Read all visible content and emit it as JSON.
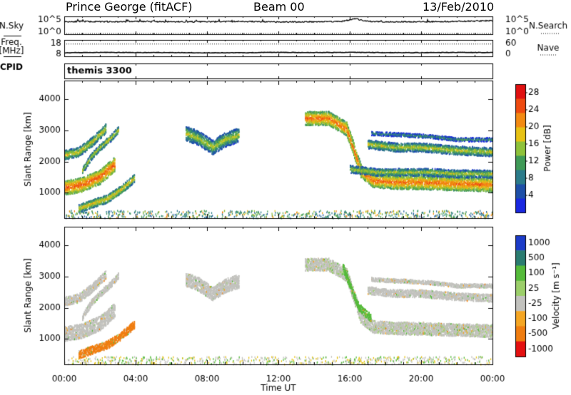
{
  "header": {
    "title": "Prince George (fitACF)",
    "beam": "Beam 00",
    "date": "13/Feb/2010"
  },
  "chart_data": [
    {
      "type": "line",
      "panel": "noise",
      "left_label": "N.Sky",
      "right_label": "N.Search",
      "left_ticks": [
        "10^5",
        "10^0"
      ],
      "right_ticks": [
        "10^5",
        "10^0"
      ],
      "ylim_log10": [
        0,
        5
      ],
      "series": [
        {
          "style": "solid",
          "x": [
            0,
            1,
            2,
            3,
            4,
            6,
            8,
            10,
            12,
            14,
            15.5,
            16.0,
            16.3,
            16.6,
            17.0,
            18,
            20,
            22,
            23,
            24
          ],
          "y_log10": [
            3.5,
            3.6,
            3.5,
            3.5,
            3.6,
            3.5,
            3.5,
            3.6,
            3.4,
            3.5,
            3.6,
            4.0,
            4.4,
            4.0,
            3.6,
            3.5,
            3.5,
            3.6,
            3.7,
            3.8
          ]
        },
        {
          "style": "dotted",
          "x": [
            0,
            24
          ],
          "y_log10": [
            0,
            0
          ]
        }
      ]
    },
    {
      "type": "line",
      "panel": "frequency",
      "left_label": "Freq.",
      "left_unit": "[MHz]",
      "left_ticks": [
        "18",
        "8"
      ],
      "right_label": "Nave",
      "right_ticks": [
        "60",
        "0"
      ],
      "freq_ylim": [
        8,
        18
      ],
      "nave_ylim": [
        0,
        60
      ],
      "series": [
        {
          "name_axis": "freq",
          "style": "solid",
          "x": [
            0,
            2,
            4,
            6,
            8,
            10,
            12,
            14,
            16,
            18,
            20,
            22,
            24
          ],
          "y": [
            10.2,
            10.4,
            10.3,
            10.3,
            10.1,
            10.2,
            10.4,
            10.3,
            10.4,
            10.3,
            10.2,
            10.4,
            10.3
          ]
        },
        {
          "name_axis": "nave",
          "style": "dotted",
          "x": [
            0,
            24
          ],
          "y": [
            45,
            45
          ]
        }
      ]
    },
    {
      "type": "text",
      "panel": "cpid",
      "left_label": "CPID",
      "value": "themis 3300"
    },
    {
      "type": "heatmap",
      "panel": "power",
      "ylabel": "Slant Range [km]",
      "yticks": [
        1000,
        2000,
        3000,
        4000
      ],
      "ylim": [
        180,
        4600
      ],
      "xlim": [
        0,
        24
      ],
      "colorbar": {
        "label": "Power [dB]",
        "ticks": [
          4,
          8,
          12,
          16,
          20,
          24,
          28
        ],
        "range": [
          0,
          30
        ]
      },
      "bands": [
        {
          "x": [
            0.0,
            1.0,
            2.0,
            2.8
          ],
          "y": [
            1150,
            1250,
            1500,
            1900
          ],
          "w": 230,
          "p": 26
        },
        {
          "x": [
            0.0,
            0.8,
            1.6,
            2.3
          ],
          "y": [
            2200,
            2300,
            2650,
            3050
          ],
          "w": 150,
          "p": 19
        },
        {
          "x": [
            1.0,
            1.5,
            2.0,
            2.6,
            3.0
          ],
          "y": [
            1700,
            2150,
            2450,
            2750,
            3000
          ],
          "w": 110,
          "p": 18
        },
        {
          "x": [
            0.8,
            1.6,
            2.4,
            3.2,
            3.9
          ],
          "y": [
            480,
            650,
            800,
            1100,
            1450
          ],
          "w": 130,
          "p": 20
        },
        {
          "x": [
            6.8,
            7.5,
            8.3,
            9.0,
            9.8
          ],
          "y": [
            2900,
            2750,
            2450,
            2700,
            2850
          ],
          "w": 230,
          "p": 17
        },
        {
          "x": [
            13.5,
            14.8,
            15.8,
            16.2,
            16.6,
            17.3,
            18.5,
            20,
            22,
            24
          ],
          "y": [
            3380,
            3380,
            3050,
            2400,
            1700,
            1380,
            1330,
            1320,
            1280,
            1250
          ],
          "w": 220,
          "p": 25
        },
        {
          "x": [
            16.0,
            17.5,
            19,
            20.5,
            22,
            24
          ],
          "y": [
            1750,
            1650,
            1650,
            1650,
            1600,
            1600
          ],
          "w": 120,
          "p": 17
        },
        {
          "x": [
            17.0,
            18.5,
            20,
            22,
            24
          ],
          "y": [
            2550,
            2450,
            2450,
            2350,
            2300
          ],
          "w": 140,
          "p": 18
        },
        {
          "x": [
            17.2,
            19,
            20.5,
            22,
            24
          ],
          "y": [
            2900,
            2850,
            2800,
            2700,
            2700
          ],
          "w": 60,
          "p": 12
        }
      ]
    },
    {
      "type": "heatmap",
      "panel": "velocity",
      "ylabel": "Slant Range [km]",
      "yticks": [
        1000,
        2000,
        3000,
        4000
      ],
      "ylim": [
        180,
        4600
      ],
      "xlim": [
        0,
        24
      ],
      "xticks": [
        "00:00",
        "04:00",
        "08:00",
        "12:00",
        "16:00",
        "20:00",
        "00:00"
      ],
      "xlabel": "Time UT",
      "colorbar": {
        "label": "Velocity [m s⁻¹]",
        "ticks": [
          "1000",
          "500",
          "100",
          "25",
          "-25",
          "-100",
          "-500",
          "-1000"
        ]
      },
      "bands": [
        {
          "x": [
            0.0,
            1.0,
            2.0,
            2.8
          ],
          "y": [
            1150,
            1250,
            1500,
            1900
          ],
          "w": 230,
          "v": 0
        },
        {
          "x": [
            0.0,
            0.8,
            1.6,
            2.3
          ],
          "y": [
            2200,
            2300,
            2650,
            3050
          ],
          "w": 140,
          "v": 0
        },
        {
          "x": [
            1.0,
            1.5,
            2.0,
            2.6,
            3.0
          ],
          "y": [
            1700,
            2150,
            2450,
            2750,
            3000
          ],
          "w": 100,
          "v": 0
        },
        {
          "x": [
            0.8,
            1.6,
            2.4,
            3.2,
            3.9
          ],
          "y": [
            480,
            650,
            800,
            1100,
            1450
          ],
          "w": 130,
          "v": -400
        },
        {
          "x": [
            6.8,
            7.5,
            8.3,
            9.0,
            9.8
          ],
          "y": [
            2900,
            2750,
            2450,
            2700,
            2850
          ],
          "w": 220,
          "v": 0
        },
        {
          "x": [
            13.5,
            14.8,
            15.8,
            16.2,
            16.6,
            17.3,
            18.5,
            20,
            22,
            24
          ],
          "y": [
            3380,
            3380,
            3050,
            2400,
            1700,
            1380,
            1330,
            1320,
            1280,
            1250
          ],
          "w": 200,
          "v": 10
        },
        {
          "x": [
            15.6,
            16.0,
            16.5,
            17.2
          ],
          "y": [
            3300,
            2700,
            2000,
            1650
          ],
          "w": 120,
          "v": 120
        },
        {
          "x": [
            17.0,
            18.5,
            20,
            22,
            24
          ],
          "y": [
            2550,
            2450,
            2450,
            2350,
            2300
          ],
          "w": 120,
          "v": 0
        },
        {
          "x": [
            17.2,
            19,
            20.5,
            22,
            24
          ],
          "y": [
            2900,
            2850,
            2800,
            2700,
            2700
          ],
          "w": 60,
          "v": 0
        }
      ]
    }
  ]
}
